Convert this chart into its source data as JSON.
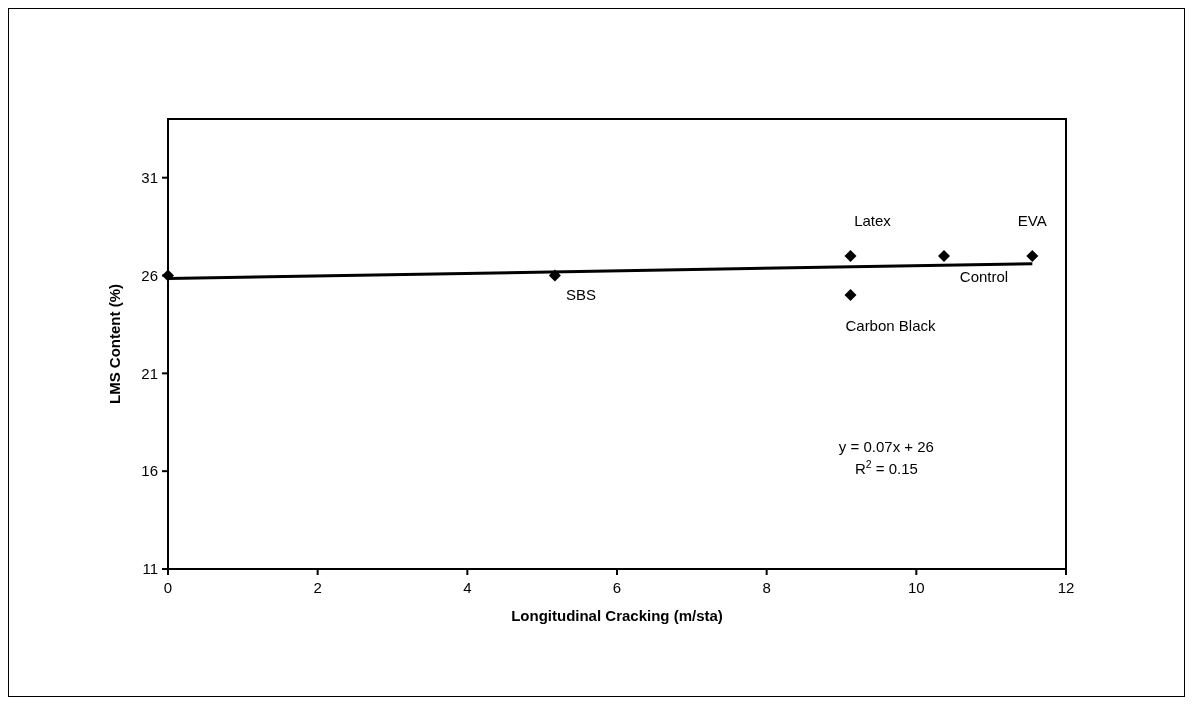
{
  "chart_data": {
    "type": "scatter",
    "xlabel": "Longitudinal Cracking (m/sta)",
    "ylabel": "LMS Content (%)",
    "xlim": [
      0,
      12
    ],
    "xticks": [
      0,
      2,
      4,
      6,
      8,
      10,
      12
    ],
    "ylim": [
      11,
      34
    ],
    "yticks": [
      11,
      16,
      21,
      26,
      31
    ],
    "grid": false,
    "marker": "diamond",
    "series": [
      {
        "color": "#000000",
        "x": [
          0,
          5.17,
          9.12,
          9.12,
          10.37,
          11.55
        ],
        "values": [
          26,
          26,
          27,
          25,
          27,
          27
        ]
      },
      {
        "type": "line",
        "color": "#000000",
        "line_style": "solid",
        "marker": "none",
        "x": [
          0,
          11.55
        ],
        "values": [
          25.85,
          26.6
        ]
      }
    ],
    "annotations": [
      {
        "text": "SBS",
        "x": 5.17,
        "y": 26
      },
      {
        "text": "Latex",
        "x": 9.12,
        "y": 27
      },
      {
        "text": "Carbon Black",
        "x": 9.12,
        "y": 25
      },
      {
        "text": "Control",
        "x": 10.37,
        "y": 27
      },
      {
        "text": "EVA",
        "x": 11.55,
        "y": 27
      },
      "y = 0.07x + 26",
      "R$^{2}$ = 0.15"
    ]
  }
}
